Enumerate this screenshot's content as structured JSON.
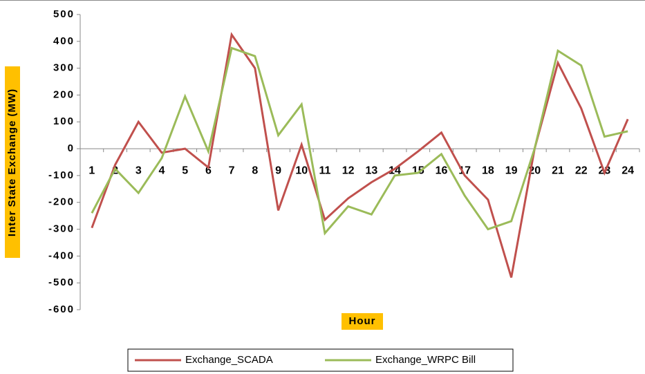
{
  "chart_data": {
    "type": "line",
    "x_label": "Hour",
    "y_label": "Inter State Exchange (MW)",
    "categories": [
      "1",
      "2",
      "3",
      "4",
      "5",
      "6",
      "7",
      "8",
      "9",
      "10",
      "11",
      "12",
      "13",
      "14",
      "15",
      "16",
      "17",
      "18",
      "19",
      "20",
      "21",
      "22",
      "23",
      "24"
    ],
    "series": [
      {
        "name": "Exchange_SCADA",
        "color": "#c0504d",
        "values": [
          -295,
          -60,
          100,
          -15,
          0,
          -70,
          425,
          300,
          -230,
          15,
          -265,
          -185,
          -125,
          -75,
          -10,
          60,
          -100,
          -190,
          -480,
          0,
          320,
          150,
          -90,
          110
        ]
      },
      {
        "name": "Exchange_WRPC Bill",
        "color": "#9bbb59",
        "values": [
          -240,
          -75,
          -165,
          -35,
          195,
          -10,
          375,
          345,
          50,
          165,
          -315,
          -215,
          -245,
          -100,
          -90,
          -20,
          -175,
          -300,
          -270,
          0,
          365,
          310,
          45,
          65
        ]
      }
    ],
    "ylim": [
      -600,
      500
    ],
    "yticks": [
      -600,
      -500,
      -400,
      -300,
      -200,
      -100,
      0,
      100,
      200,
      300,
      400,
      500
    ],
    "legend": "bottom",
    "label_color": "#ffc000"
  }
}
